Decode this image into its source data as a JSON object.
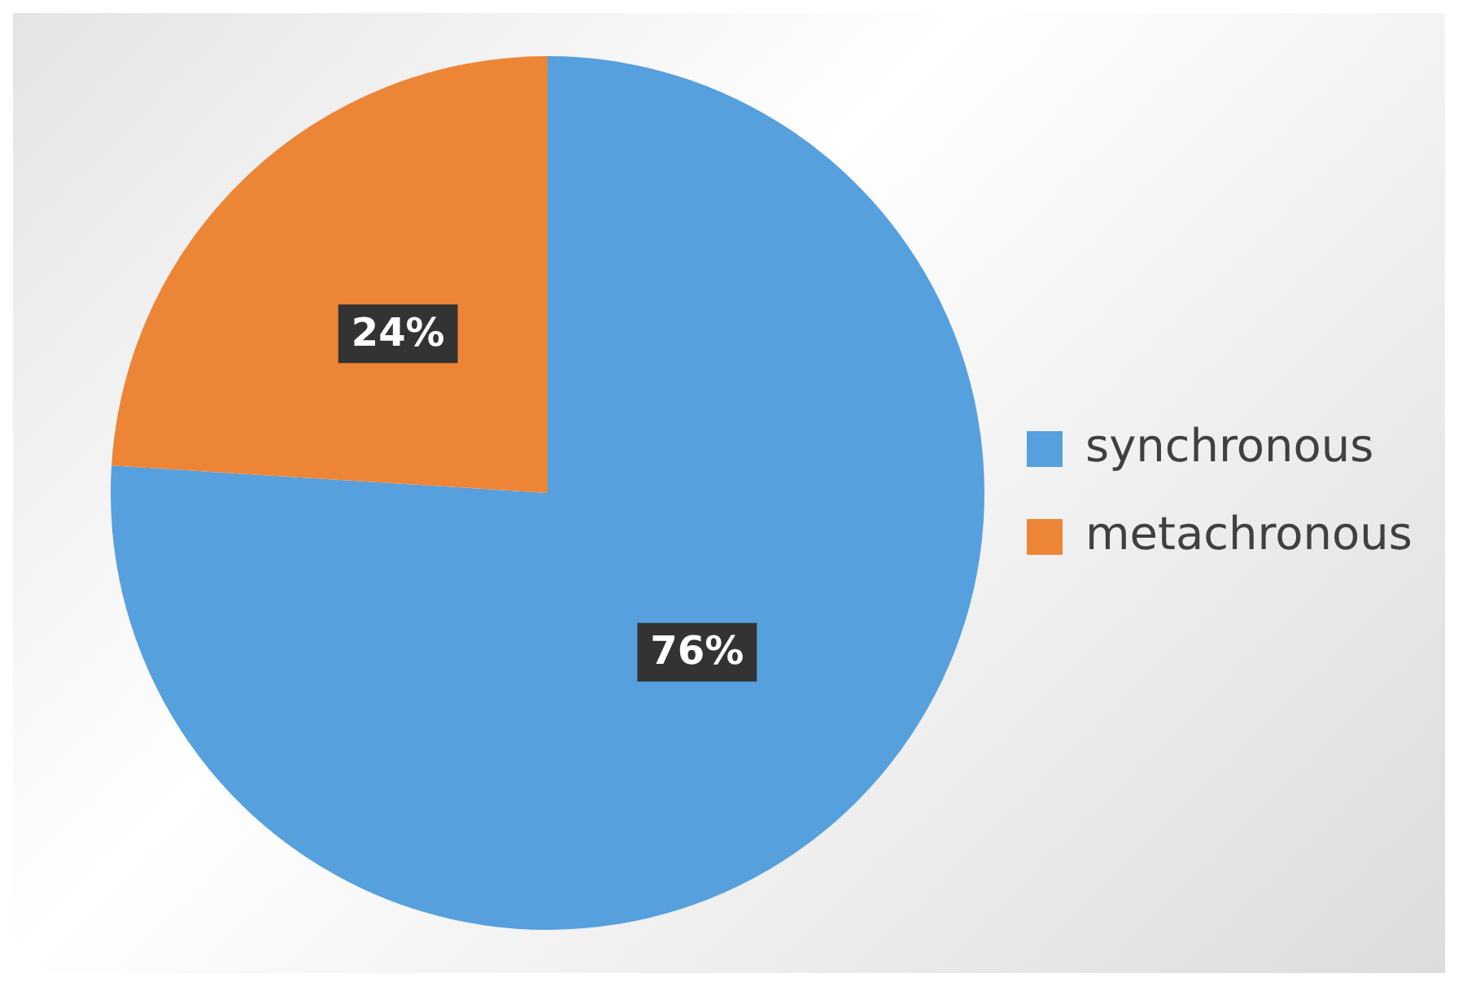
{
  "chart_data": {
    "type": "pie",
    "categories": [
      "synchronous",
      "metachronous"
    ],
    "values": [
      76,
      24
    ],
    "colors": [
      "#55a0dd",
      "#ed8537"
    ],
    "value_labels": [
      "76%",
      "24%"
    ],
    "legend": "right"
  }
}
